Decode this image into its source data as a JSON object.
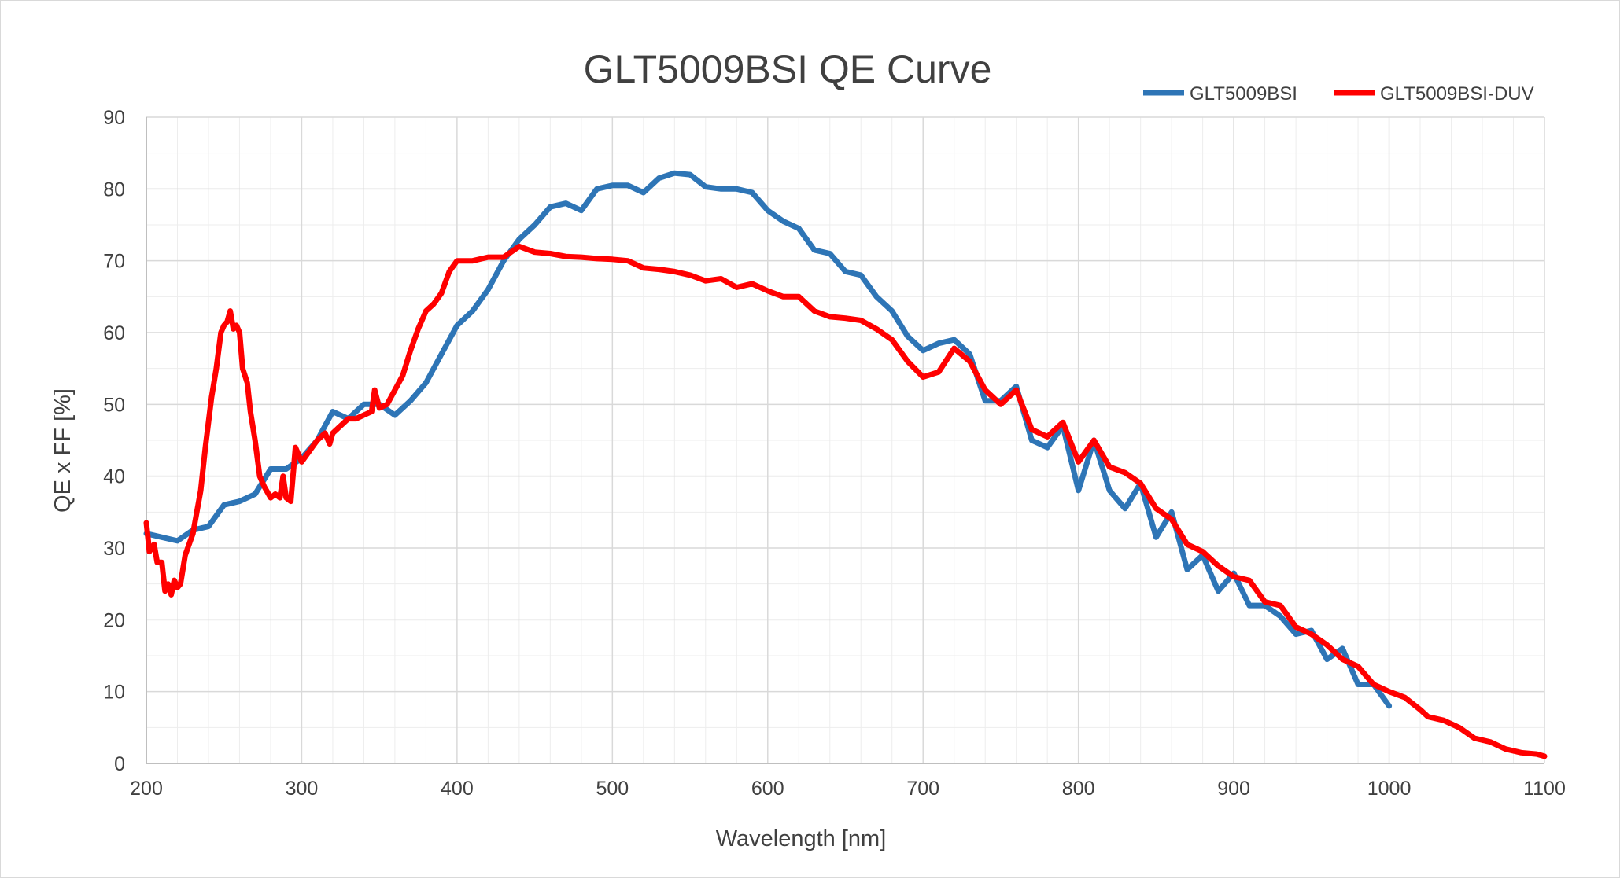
{
  "chart_data": {
    "type": "line",
    "title": "GLT5009BSI QE  Curve",
    "xlabel": "Wavelength [nm]",
    "ylabel": "QE x FF [%]",
    "xlim": [
      200,
      1100
    ],
    "ylim": [
      0,
      90
    ],
    "x_ticks": [
      "200",
      "300",
      "400",
      "500",
      "600",
      "700",
      "800",
      "900",
      "1000",
      "1100"
    ],
    "y_ticks": [
      "0",
      "10",
      "20",
      "30",
      "40",
      "50",
      "60",
      "70",
      "80",
      "90"
    ],
    "grid": true,
    "legend_position": "top-right",
    "series": [
      {
        "name": "GLT5009BSI",
        "color": "#2e75b6",
        "points": [
          [
            200,
            32
          ],
          [
            210,
            31.5
          ],
          [
            220,
            31
          ],
          [
            230,
            32.5
          ],
          [
            240,
            33
          ],
          [
            250,
            36
          ],
          [
            260,
            36.5
          ],
          [
            270,
            37.5
          ],
          [
            280,
            41
          ],
          [
            290,
            41
          ],
          [
            300,
            42.5
          ],
          [
            310,
            45
          ],
          [
            320,
            49
          ],
          [
            330,
            48
          ],
          [
            340,
            50
          ],
          [
            350,
            50
          ],
          [
            360,
            48.5
          ],
          [
            370,
            50.5
          ],
          [
            380,
            53
          ],
          [
            390,
            57
          ],
          [
            400,
            61
          ],
          [
            410,
            63
          ],
          [
            420,
            66
          ],
          [
            430,
            70
          ],
          [
            440,
            73
          ],
          [
            450,
            75
          ],
          [
            460,
            77.5
          ],
          [
            470,
            78
          ],
          [
            480,
            77
          ],
          [
            490,
            80
          ],
          [
            500,
            80.5
          ],
          [
            510,
            80.5
          ],
          [
            520,
            79.5
          ],
          [
            530,
            81.5
          ],
          [
            540,
            82.2
          ],
          [
            550,
            82
          ],
          [
            560,
            80.3
          ],
          [
            570,
            80
          ],
          [
            580,
            80
          ],
          [
            590,
            79.5
          ],
          [
            600,
            77
          ],
          [
            610,
            75.5
          ],
          [
            620,
            74.5
          ],
          [
            630,
            71.5
          ],
          [
            640,
            71
          ],
          [
            650,
            68.5
          ],
          [
            660,
            68
          ],
          [
            670,
            65
          ],
          [
            680,
            63
          ],
          [
            690,
            59.5
          ],
          [
            700,
            57.5
          ],
          [
            710,
            58.5
          ],
          [
            720,
            59
          ],
          [
            730,
            57
          ],
          [
            740,
            50.5
          ],
          [
            750,
            50.5
          ],
          [
            760,
            52.5
          ],
          [
            770,
            45
          ],
          [
            780,
            44
          ],
          [
            790,
            47
          ],
          [
            800,
            38
          ],
          [
            810,
            45
          ],
          [
            820,
            38
          ],
          [
            830,
            35.5
          ],
          [
            840,
            39
          ],
          [
            850,
            31.5
          ],
          [
            860,
            35
          ],
          [
            870,
            27
          ],
          [
            880,
            29
          ],
          [
            890,
            24
          ],
          [
            900,
            26.5
          ],
          [
            910,
            22
          ],
          [
            920,
            22
          ],
          [
            930,
            20.5
          ],
          [
            940,
            18
          ],
          [
            950,
            18.5
          ],
          [
            960,
            14.5
          ],
          [
            970,
            16
          ],
          [
            980,
            11
          ],
          [
            990,
            11
          ],
          [
            1000,
            8
          ]
        ]
      },
      {
        "name": "GLT5009BSI-DUV",
        "color": "#ff0000",
        "points": [
          [
            200,
            33.5
          ],
          [
            202,
            29.5
          ],
          [
            205,
            30.5
          ],
          [
            207,
            28
          ],
          [
            210,
            28
          ],
          [
            212,
            24
          ],
          [
            214,
            25
          ],
          [
            216,
            23.5
          ],
          [
            218,
            25.5
          ],
          [
            220,
            24.5
          ],
          [
            222,
            25
          ],
          [
            225,
            29
          ],
          [
            230,
            32
          ],
          [
            235,
            38
          ],
          [
            238,
            44
          ],
          [
            242,
            51
          ],
          [
            245,
            55
          ],
          [
            248,
            60
          ],
          [
            250,
            61
          ],
          [
            252,
            61.5
          ],
          [
            254,
            63
          ],
          [
            256,
            60.5
          ],
          [
            258,
            61
          ],
          [
            260,
            60
          ],
          [
            262,
            55
          ],
          [
            265,
            53
          ],
          [
            267,
            49
          ],
          [
            270,
            45
          ],
          [
            273,
            40
          ],
          [
            276,
            38.5
          ],
          [
            280,
            37
          ],
          [
            283,
            37.5
          ],
          [
            286,
            37
          ],
          [
            288,
            40
          ],
          [
            290,
            37
          ],
          [
            293,
            36.5
          ],
          [
            296,
            44
          ],
          [
            300,
            42
          ],
          [
            305,
            43.5
          ],
          [
            310,
            45
          ],
          [
            315,
            46
          ],
          [
            318,
            44.5
          ],
          [
            320,
            46
          ],
          [
            325,
            47
          ],
          [
            330,
            48
          ],
          [
            335,
            48
          ],
          [
            340,
            48.5
          ],
          [
            345,
            49
          ],
          [
            347,
            52
          ],
          [
            350,
            49.5
          ],
          [
            355,
            50
          ],
          [
            360,
            52
          ],
          [
            365,
            54
          ],
          [
            370,
            57.5
          ],
          [
            375,
            60.5
          ],
          [
            380,
            63
          ],
          [
            385,
            64
          ],
          [
            390,
            65.5
          ],
          [
            395,
            68.5
          ],
          [
            400,
            70
          ],
          [
            410,
            70
          ],
          [
            420,
            70.5
          ],
          [
            430,
            70.5
          ],
          [
            440,
            72
          ],
          [
            450,
            71.2
          ],
          [
            460,
            71
          ],
          [
            470,
            70.6
          ],
          [
            480,
            70.5
          ],
          [
            490,
            70.3
          ],
          [
            500,
            70.2
          ],
          [
            510,
            70
          ],
          [
            520,
            69
          ],
          [
            530,
            68.8
          ],
          [
            540,
            68.5
          ],
          [
            550,
            68
          ],
          [
            560,
            67.2
          ],
          [
            570,
            67.5
          ],
          [
            580,
            66.3
          ],
          [
            590,
            66.8
          ],
          [
            600,
            65.8
          ],
          [
            610,
            65
          ],
          [
            620,
            65
          ],
          [
            630,
            63
          ],
          [
            640,
            62.2
          ],
          [
            650,
            62
          ],
          [
            660,
            61.7
          ],
          [
            670,
            60.5
          ],
          [
            680,
            59
          ],
          [
            690,
            56
          ],
          [
            700,
            53.8
          ],
          [
            710,
            54.5
          ],
          [
            720,
            57.8
          ],
          [
            730,
            56
          ],
          [
            740,
            52
          ],
          [
            750,
            50
          ],
          [
            760,
            52
          ],
          [
            770,
            46.5
          ],
          [
            780,
            45.5
          ],
          [
            790,
            47.5
          ],
          [
            800,
            42
          ],
          [
            810,
            45
          ],
          [
            820,
            41.3
          ],
          [
            830,
            40.5
          ],
          [
            840,
            39
          ],
          [
            850,
            35.5
          ],
          [
            860,
            34
          ],
          [
            870,
            30.5
          ],
          [
            880,
            29.5
          ],
          [
            890,
            27.5
          ],
          [
            900,
            26
          ],
          [
            910,
            25.5
          ],
          [
            920,
            22.5
          ],
          [
            930,
            22
          ],
          [
            940,
            19
          ],
          [
            950,
            18
          ],
          [
            960,
            16.5
          ],
          [
            970,
            14.5
          ],
          [
            980,
            13.5
          ],
          [
            990,
            11
          ],
          [
            1000,
            10
          ],
          [
            1010,
            9.2
          ],
          [
            1020,
            7.5
          ],
          [
            1025,
            6.5
          ],
          [
            1035,
            6
          ],
          [
            1045,
            5
          ],
          [
            1055,
            3.5
          ],
          [
            1065,
            3
          ],
          [
            1075,
            2
          ],
          [
            1085,
            1.5
          ],
          [
            1095,
            1.3
          ],
          [
            1100,
            1
          ]
        ]
      }
    ]
  }
}
